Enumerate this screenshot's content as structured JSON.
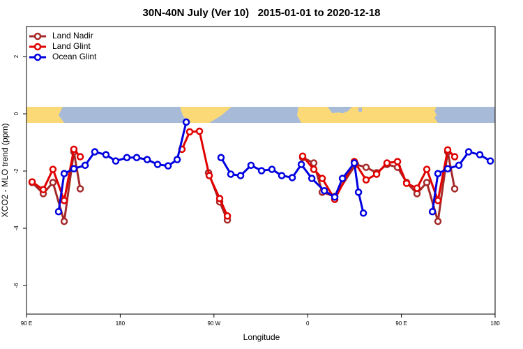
{
  "chart_data": {
    "type": "line",
    "title": "30N-40N July (Ver 10)   2015-01-01 to 2020-12-18",
    "xlabel": "Longitude",
    "ylabel": "XCO2 - MLO trend (ppm)",
    "xlim": [
      90,
      540
    ],
    "ylim": [
      -7,
      3.05
    ],
    "xticks": [
      {
        "value": 90,
        "label": "90 E"
      },
      {
        "value": 180,
        "label": "180"
      },
      {
        "value": 270,
        "label": "90 W"
      },
      {
        "value": 360,
        "label": "0"
      },
      {
        "value": 450,
        "label": "90 E"
      },
      {
        "value": 540,
        "label": "180"
      }
    ],
    "yticks": [
      2,
      0,
      -2,
      -4,
      -6
    ],
    "legend": "top-left",
    "series": [
      {
        "name": "Land Nadir",
        "color": "#a52a2a",
        "x": [
          95.4,
          106.1,
          115.4,
          126.2,
          135.5,
          141.6,
          null,
          264.8,
          275.5,
          282.9,
          null,
          355.2,
          365.9,
          374.0,
          386.0,
          406.1,
          416.1,
          426.2,
          436.2,
          446.3,
          455.0,
          465.0,
          474.4,
          485.1,
          494.5,
          501.2
        ],
        "values": [
          -2.4,
          -2.79,
          -2.4,
          -3.76,
          -1.33,
          -2.62,
          null,
          -2.06,
          -3.08,
          -3.71,
          null,
          -1.53,
          -1.72,
          -2.74,
          -2.89,
          -1.77,
          -1.87,
          -2.06,
          -1.77,
          -1.87,
          -2.4,
          -2.79,
          -2.4,
          -3.76,
          -1.33,
          -2.62
        ]
      },
      {
        "name": "Land Glint",
        "color": "#e00000",
        "x": [
          95.4,
          106.1,
          115.4,
          126.2,
          135.5,
          141.6,
          null,
          239.3,
          246.7,
          256.1,
          265.5,
          275.5,
          282.9,
          null,
          355.2,
          365.9,
          374.0,
          386.0,
          404.8,
          416.1,
          426.2,
          436.2,
          446.3,
          455.0,
          465.0,
          474.4,
          485.1,
          494.5,
          501.2
        ],
        "values": [
          -2.38,
          -2.65,
          -1.94,
          -3.03,
          -1.24,
          -1.5,
          null,
          -1.24,
          -0.63,
          -0.61,
          -2.16,
          -2.96,
          -3.57,
          null,
          -1.48,
          -1.94,
          -2.26,
          -2.99,
          -1.67,
          -2.31,
          -2.11,
          -1.72,
          -1.67,
          -2.43,
          -2.6,
          -1.94,
          -3.03,
          -1.26,
          -1.5
        ]
      },
      {
        "name": "Ocean Glint",
        "color": "#0000e0",
        "x": [
          120.8,
          126.2,
          135.5,
          146.3,
          155.6,
          166.3,
          175.7,
          186.4,
          195.8,
          205.9,
          215.9,
          226.0,
          234.7,
          243.4,
          null,
          276.8,
          286.2,
          295.6,
          305.6,
          315.7,
          325.7,
          335.1,
          345.2,
          353.9,
          364.0,
          376.0,
          386.0,
          393.4,
          404.8,
          408.8,
          413.5,
          null,
          479.8,
          485.1,
          494.5,
          505.2,
          514.6,
          525.3,
          535.4
        ],
        "values": [
          -3.42,
          -2.09,
          -1.92,
          -1.8,
          -1.33,
          -1.43,
          -1.65,
          -1.53,
          -1.53,
          -1.6,
          -1.77,
          -1.82,
          -1.6,
          -0.29,
          null,
          -1.53,
          -2.11,
          -2.16,
          -1.8,
          -1.99,
          -1.94,
          -2.16,
          -2.23,
          -1.77,
          -2.26,
          -2.69,
          -2.91,
          -2.26,
          -1.72,
          -2.74,
          -3.47,
          null,
          -3.42,
          -2.09,
          -1.92,
          -1.8,
          -1.33,
          -1.43,
          -1.65
        ]
      }
    ]
  }
}
